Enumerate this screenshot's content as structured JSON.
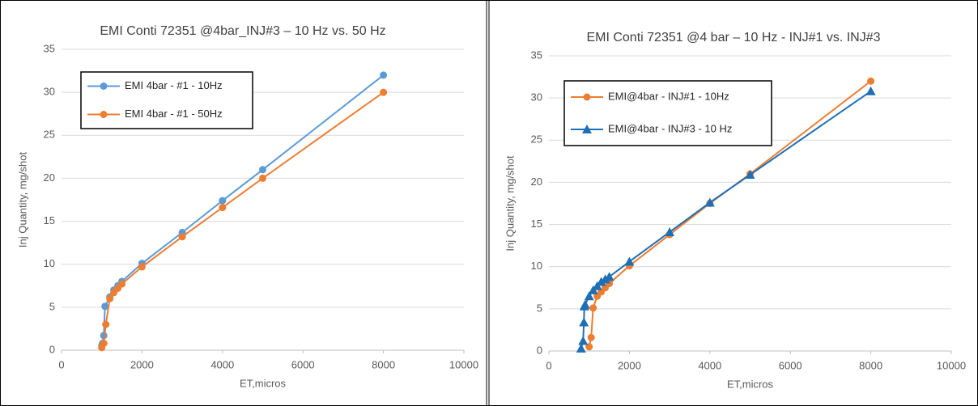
{
  "chart_data": [
    {
      "type": "line",
      "title": "EMI Conti 72351 @4bar_INJ#3 – 10 Hz vs. 50 Hz",
      "x_label": "ET,micros",
      "y_label": "Inj Quantity, mg/shot",
      "xlim": [
        0,
        10000
      ],
      "xticks": [
        0,
        2000,
        4000,
        6000,
        8000,
        10000
      ],
      "ylim": [
        0,
        35
      ],
      "yticks": [
        0,
        5,
        10,
        15,
        20,
        25,
        30,
        35
      ],
      "grid": true,
      "legend": "upper left",
      "series": [
        {
          "name": "EMI 4bar - #1 - 10Hz",
          "color": "#5b9bd5",
          "marker": "circle",
          "x": [
            1000,
            1020,
            1050,
            1080,
            1200,
            1300,
            1400,
            1500,
            2000,
            3000,
            4000,
            5000,
            8000
          ],
          "values": [
            0.5,
            0.8,
            1.7,
            5.1,
            6.2,
            7,
            7.5,
            8,
            10.1,
            13.7,
            17.4,
            21,
            32
          ]
        },
        {
          "name": "EMI 4bar - #1 - 50Hz",
          "color": "#ed7d31",
          "marker": "circle",
          "x": [
            1000,
            1050,
            1100,
            1200,
            1300,
            1400,
            1500,
            2000,
            3000,
            4000,
            5000,
            8000
          ],
          "values": [
            0.3,
            0.8,
            3,
            6,
            6.7,
            7.2,
            7.7,
            9.7,
            13.2,
            16.6,
            20,
            30
          ]
        }
      ]
    },
    {
      "type": "line",
      "title": "EMI Conti 72351 @4 bar – 10 Hz - INJ#1 vs. INJ#3",
      "x_label": "ET,micros",
      "y_label": "Inj Quantity, mg/shot",
      "xlim": [
        0,
        10000
      ],
      "xticks": [
        0,
        2000,
        4000,
        6000,
        8000,
        10000
      ],
      "ylim": [
        0,
        35
      ],
      "yticks": [
        0,
        5,
        10,
        15,
        20,
        25,
        30,
        35
      ],
      "grid": true,
      "legend": "upper left",
      "series": [
        {
          "name": "EMI@4bar - INJ#1 - 10Hz",
          "color": "#ed7d31",
          "marker": "circle",
          "x": [
            1000,
            1050,
            1100,
            1200,
            1300,
            1400,
            1500,
            2000,
            3000,
            4000,
            5000,
            8000
          ],
          "values": [
            0.5,
            1.6,
            5.1,
            6.5,
            7,
            7.5,
            8,
            10.1,
            13.8,
            17.5,
            21,
            32
          ]
        },
        {
          "name": "EMI@4bar - INJ#3 - 10 Hz",
          "color": "#1f6fb4",
          "marker": "triangle",
          "x": [
            800,
            850,
            870,
            880,
            900,
            1000,
            1100,
            1200,
            1300,
            1400,
            1500,
            2000,
            3000,
            4000,
            5000,
            8000
          ],
          "values": [
            0.3,
            1.2,
            3.4,
            5.3,
            5.5,
            6.5,
            7.2,
            7.7,
            8.2,
            8.5,
            8.8,
            10.6,
            14.1,
            17.6,
            20.9,
            30.8
          ]
        }
      ]
    }
  ]
}
